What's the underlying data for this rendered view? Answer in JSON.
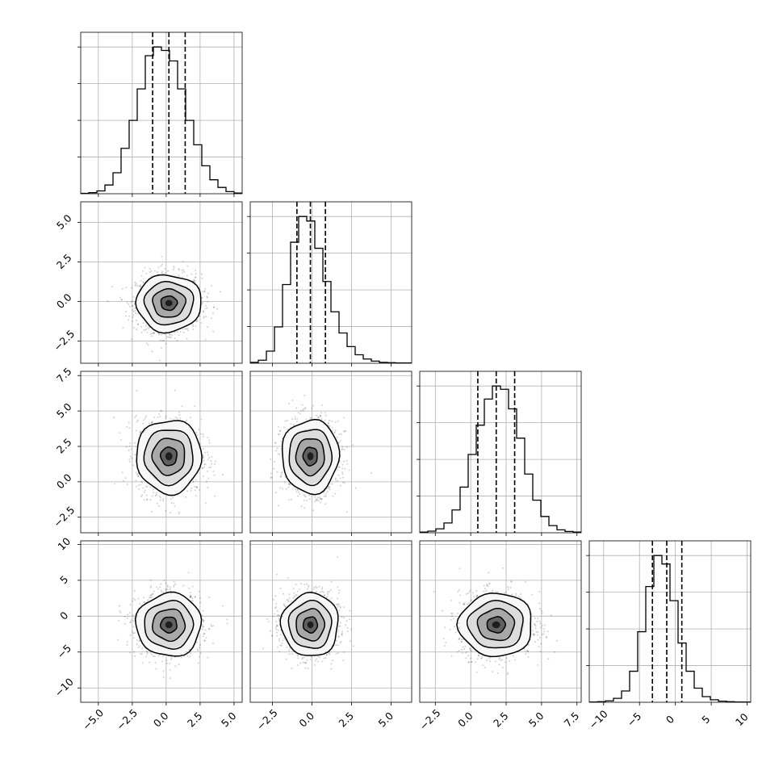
{
  "chart_data": {
    "type": "corner",
    "grid": true,
    "parameters": [
      {
        "mean": 0.2,
        "std": 1.2,
        "range": [
          -6.3,
          5.6
        ],
        "quantiles": [
          -1.0,
          0.2,
          1.4
        ],
        "ticks": [
          -5.0,
          -2.5,
          0.0,
          2.5,
          5.0
        ],
        "tick_labels": [
          "−5.0",
          "−2.5",
          "0.0",
          "2.5",
          "5.0"
        ]
      },
      {
        "mean": -0.1,
        "std": 0.9,
        "range": [
          -3.9,
          6.3
        ],
        "quantiles": [
          -0.95,
          -0.1,
          0.85
        ],
        "ticks": [
          -2.5,
          0.0,
          2.5,
          5.0
        ],
        "tick_labels": [
          "−2.5",
          "0.0",
          "2.5",
          "5.0"
        ]
      },
      {
        "mean": 1.8,
        "std": 1.3,
        "range": [
          -3.6,
          7.8
        ],
        "quantiles": [
          0.5,
          1.8,
          3.1
        ],
        "ticks": [
          -2.5,
          0.0,
          2.5,
          5.0,
          7.5
        ],
        "tick_labels": [
          "−2.5",
          "0.0",
          "2.5",
          "5.0",
          "7.5"
        ]
      },
      {
        "mean": -1.2,
        "std": 2.2,
        "range": [
          -12.0,
          10.5
        ],
        "quantiles": [
          -3.2,
          -1.2,
          0.9
        ],
        "ticks": [
          -10,
          -5,
          0,
          5,
          10
        ],
        "tick_labels": [
          "−10",
          "−5",
          "0",
          "5",
          "10"
        ]
      }
    ],
    "diagonal_histograms": [
      {
        "bins": 20,
        "counts": [
          1,
          3,
          8,
          25,
          60,
          130,
          210,
          300,
          395,
          420,
          410,
          380,
          300,
          210,
          140,
          80,
          40,
          18,
          6,
          2
        ]
      },
      {
        "bins": 20,
        "counts": [
          3,
          10,
          40,
          120,
          260,
          400,
          485,
          470,
          380,
          270,
          170,
          100,
          55,
          28,
          14,
          7,
          3,
          2,
          1,
          1
        ]
      },
      {
        "bins": 20,
        "counts": [
          2,
          5,
          12,
          30,
          70,
          140,
          240,
          330,
          410,
          450,
          440,
          380,
          290,
          180,
          100,
          50,
          22,
          9,
          4,
          2
        ]
      },
      {
        "bins": 20,
        "counts": [
          1,
          2,
          5,
          14,
          40,
          110,
          250,
          410,
          520,
          490,
          360,
          210,
          110,
          50,
          20,
          9,
          4,
          2,
          1,
          1
        ]
      }
    ],
    "density_panels": [
      {
        "row": 1,
        "col": 0
      },
      {
        "row": 2,
        "col": 0
      },
      {
        "row": 2,
        "col": 1
      },
      {
        "row": 3,
        "col": 0
      },
      {
        "row": 3,
        "col": 1
      },
      {
        "row": 3,
        "col": 2
      }
    ],
    "contour_levels_sigma": [
      0.5,
      1.0,
      1.5,
      2.0
    ],
    "colors": {
      "line": "#000000",
      "grid": "#b0b0b0",
      "points": "#000000"
    }
  }
}
